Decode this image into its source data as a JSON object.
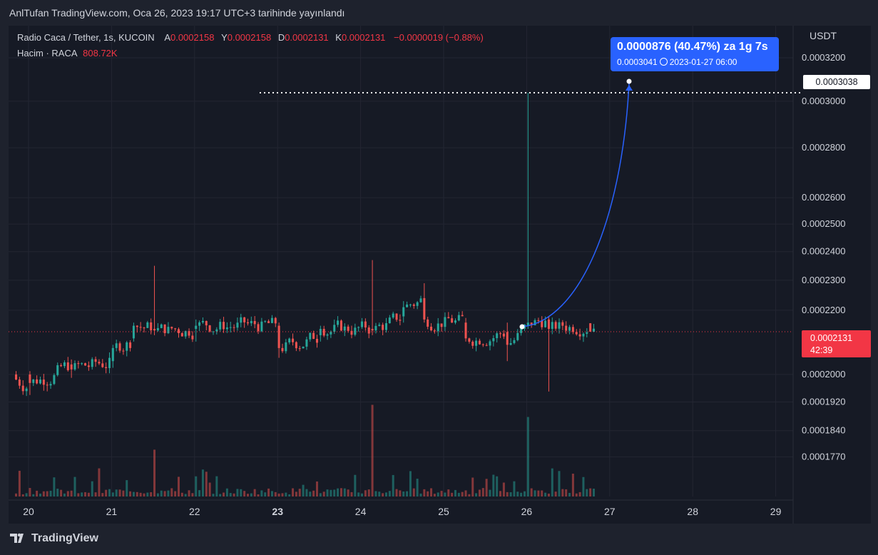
{
  "header": {
    "published": "AnlTufan TradingView.com, Oca 26, 2023 19:17 UTC+3 tarihinde yayınlandı"
  },
  "legend": {
    "title": "Radio Caca / Tether, 1s, KUCOIN",
    "open_label": "A",
    "open": "0.0002158",
    "high_label": "Y",
    "high": "0.0002158",
    "low_label": "D",
    "low": "0.0002131",
    "close_label": "K",
    "close": "0.0002131",
    "change": "−0.0000019 (−0.88%)",
    "volume_label": "Hacim · RACA",
    "volume": "808.72K"
  },
  "axis": {
    "currency": "USDT",
    "y_ticks": [
      "0.0003200",
      "0.0003000",
      "0.0002800",
      "0.0002600",
      "0.0002500",
      "0.0002400",
      "0.0002300",
      "0.0002200",
      "0.0002000",
      "0.0001920",
      "0.0001840",
      "0.0001770"
    ],
    "x_ticks": [
      "20",
      "21",
      "22",
      "23",
      "24",
      "25",
      "26",
      "27",
      "28",
      "29"
    ]
  },
  "price_label": "0.0003038",
  "current_price": {
    "value": "0.0002131",
    "countdown": "42:39"
  },
  "measure": {
    "main": "0.0000876 (40.47%) za 1g 7s",
    "price": "0.0003041",
    "time": "2023-01-27  06:00"
  },
  "footer": {
    "brand": "TradingView"
  },
  "colors": {
    "up": "#26a69a",
    "down": "#ef5350",
    "accent": "#2962ff",
    "background": "#161a25"
  },
  "chart_data": {
    "type": "candlestick",
    "timeframe": "1h",
    "y_scale": "log",
    "ylim": [
      0.000175,
      0.00033
    ],
    "x_range": [
      "20",
      "29"
    ],
    "sampled_candles": [
      {
        "t": "20 00:00",
        "o": 0.0002,
        "h": 0.000201,
        "l": 0.000194,
        "c": 0.0001975
      },
      {
        "t": "20 12:00",
        "o": 0.000203,
        "h": 0.0002045,
        "l": 0.000199,
        "c": 0.0002015
      },
      {
        "t": "21 00:00",
        "o": 0.000204,
        "h": 0.000209,
        "l": 0.000202,
        "c": 0.000208
      },
      {
        "t": "21 06:00",
        "o": 0.000211,
        "h": 0.000216,
        "l": 0.00021,
        "c": 0.000215
      },
      {
        "t": "21 12:00",
        "o": 0.000214,
        "h": 0.000235,
        "l": 0.000212,
        "c": 0.0002135
      },
      {
        "t": "22 00:00",
        "o": 0.000214,
        "h": 0.000217,
        "l": 0.00021,
        "c": 0.000215
      },
      {
        "t": "23 00:00",
        "o": 0.000215,
        "h": 0.000216,
        "l": 0.000205,
        "c": 0.000208
      },
      {
        "t": "23 12:00",
        "o": 0.000212,
        "h": 0.000215,
        "l": 0.00021,
        "c": 0.000214
      },
      {
        "t": "24 03:00",
        "o": 0.000214,
        "h": 0.000237,
        "l": 0.000212,
        "c": 0.0002135
      },
      {
        "t": "24 12:00",
        "o": 0.000218,
        "h": 0.000223,
        "l": 0.000216,
        "c": 0.000221
      },
      {
        "t": "24 18:00",
        "o": 0.000224,
        "h": 0.000229,
        "l": 0.000216,
        "c": 0.000217
      },
      {
        "t": "25 06:00",
        "o": 0.000216,
        "h": 0.0002175,
        "l": 0.00021,
        "c": 0.000211
      },
      {
        "t": "25 18:00",
        "o": 0.000213,
        "h": 0.000216,
        "l": 0.000204,
        "c": 0.000209
      },
      {
        "t": "26 00:00",
        "o": 0.000215,
        "h": 0.0003038,
        "l": 0.000214,
        "c": 0.000216
      },
      {
        "t": "26 06:00",
        "o": 0.000217,
        "h": 0.000218,
        "l": 0.000195,
        "c": 0.000214
      },
      {
        "t": "26 18:00",
        "o": 0.0002158,
        "h": 0.0002158,
        "l": 0.0002131,
        "c": 0.0002131
      }
    ]
  }
}
